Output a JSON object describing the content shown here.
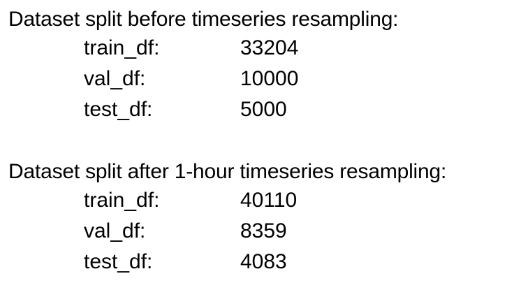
{
  "sections": [
    {
      "heading": "Dataset split before timeseries resampling:",
      "rows": [
        {
          "label": "train_df:",
          "value": "33204"
        },
        {
          "label": "val_df:",
          "value": "10000"
        },
        {
          "label": "test_df:",
          "value": "5000"
        }
      ]
    },
    {
      "heading": "Dataset split after 1-hour timeseries resampling:",
      "rows": [
        {
          "label": "train_df:",
          "value": "40110"
        },
        {
          "label": "val_df:",
          "value": "8359"
        },
        {
          "label": "test_df:",
          "value": "4083"
        }
      ]
    }
  ]
}
